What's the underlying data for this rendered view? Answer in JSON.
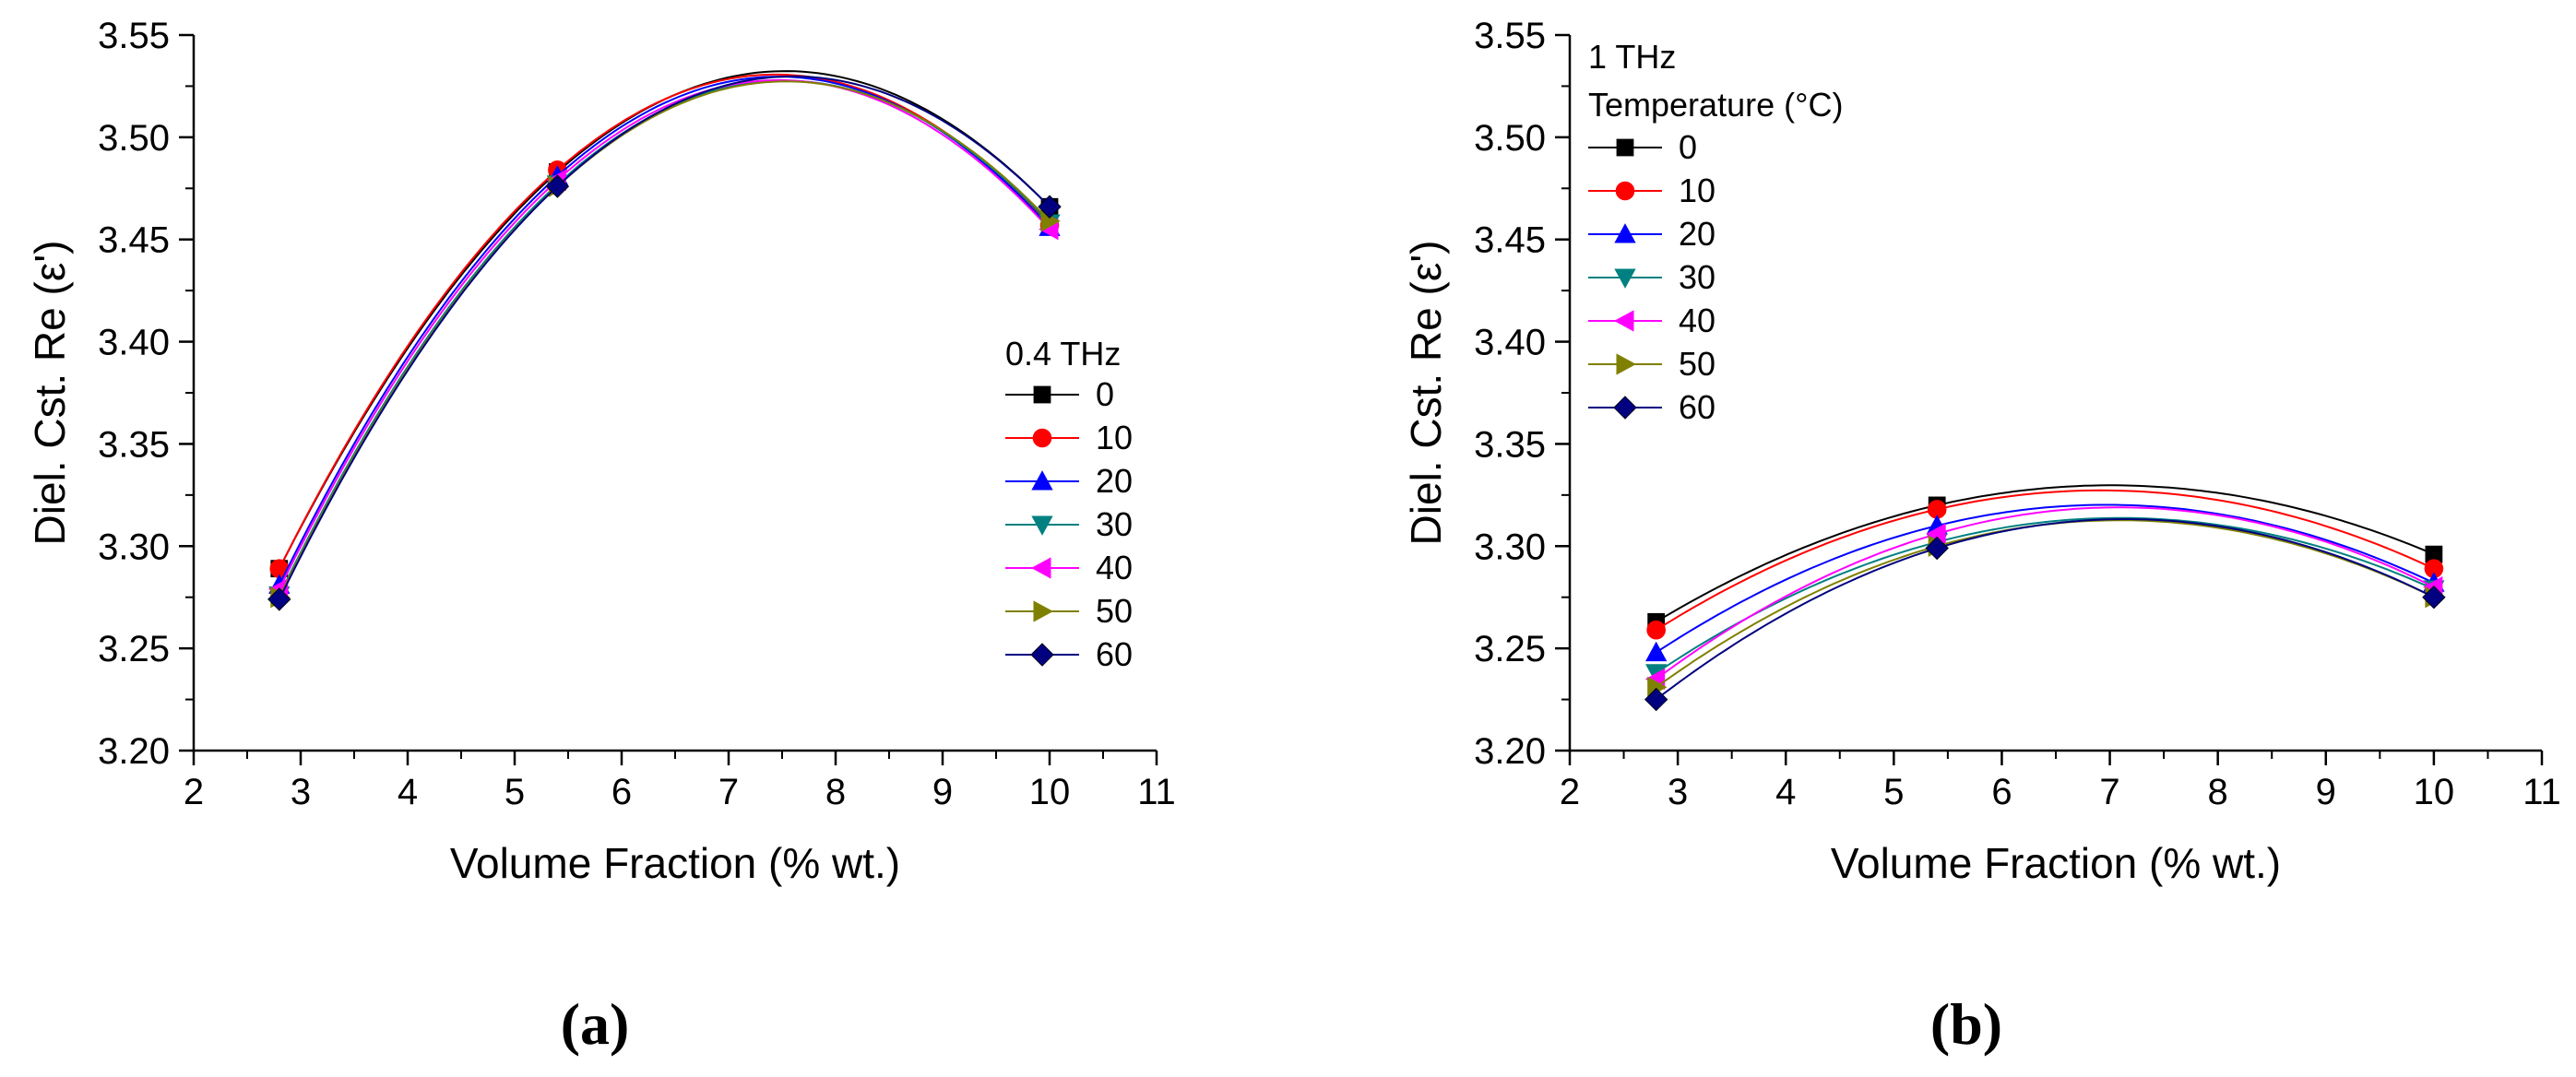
{
  "chart_data": [
    {
      "type": "line",
      "panel_label": "(a)",
      "xlabel": "Volume Fraction (% wt.)",
      "ylabel": "Diel. Cst. Re (ε')",
      "xlim": [
        2,
        11
      ],
      "ylim": [
        3.2,
        3.55
      ],
      "xticks": [
        "2",
        "3",
        "4",
        "5",
        "6",
        "7",
        "8",
        "9",
        "10",
        "11"
      ],
      "yticks": [
        "3.20",
        "3.25",
        "3.30",
        "3.35",
        "3.40",
        "3.45",
        "3.50",
        "3.55"
      ],
      "legend_title": [
        "0.4 THz"
      ],
      "legend_position": "right",
      "x": [
        2.8,
        5.4,
        10
      ],
      "series": [
        {
          "name": "0",
          "color": "#000000",
          "marker": "square",
          "values": [
            3.289,
            3.483,
            3.466
          ]
        },
        {
          "name": "10",
          "color": "#ff0000",
          "marker": "circle",
          "values": [
            3.289,
            3.484,
            3.457
          ]
        },
        {
          "name": "20",
          "color": "#0000ff",
          "marker": "triangle-up",
          "values": [
            3.281,
            3.481,
            3.456
          ]
        },
        {
          "name": "30",
          "color": "#008080",
          "marker": "triangle-down",
          "values": [
            3.276,
            3.477,
            3.458
          ]
        },
        {
          "name": "40",
          "color": "#ff00ff",
          "marker": "triangle-left",
          "values": [
            3.279,
            3.479,
            3.455
          ]
        },
        {
          "name": "50",
          "color": "#808000",
          "marker": "triangle-right",
          "values": [
            3.275,
            3.476,
            3.459
          ]
        },
        {
          "name": "60",
          "color": "#000080",
          "marker": "diamond",
          "values": [
            3.274,
            3.476,
            3.466
          ]
        }
      ]
    },
    {
      "type": "line",
      "panel_label": "(b)",
      "xlabel": "Volume Fraction (% wt.)",
      "ylabel": "Diel. Cst. Re (ε')",
      "xlim": [
        2,
        11
      ],
      "ylim": [
        3.2,
        3.55
      ],
      "xticks": [
        "2",
        "3",
        "4",
        "5",
        "6",
        "7",
        "8",
        "9",
        "10",
        "11"
      ],
      "yticks": [
        "3.20",
        "3.25",
        "3.30",
        "3.35",
        "3.40",
        "3.45",
        "3.50",
        "3.55"
      ],
      "legend_title": [
        "1 THz",
        "Temperature (°C)"
      ],
      "legend_position": "top-left",
      "x": [
        2.8,
        5.4,
        10
      ],
      "series": [
        {
          "name": "0",
          "color": "#000000",
          "marker": "square",
          "values": [
            3.263,
            3.32,
            3.296
          ]
        },
        {
          "name": "10",
          "color": "#ff0000",
          "marker": "circle",
          "values": [
            3.259,
            3.318,
            3.289
          ]
        },
        {
          "name": "20",
          "color": "#0000ff",
          "marker": "triangle-up",
          "values": [
            3.248,
            3.31,
            3.282
          ]
        },
        {
          "name": "30",
          "color": "#008080",
          "marker": "triangle-down",
          "values": [
            3.238,
            3.302,
            3.279
          ]
        },
        {
          "name": "40",
          "color": "#ff00ff",
          "marker": "triangle-left",
          "values": [
            3.235,
            3.306,
            3.28
          ]
        },
        {
          "name": "50",
          "color": "#808000",
          "marker": "triangle-right",
          "values": [
            3.231,
            3.3,
            3.275
          ]
        },
        {
          "name": "60",
          "color": "#000080",
          "marker": "diamond",
          "values": [
            3.225,
            3.299,
            3.275
          ]
        }
      ]
    }
  ]
}
